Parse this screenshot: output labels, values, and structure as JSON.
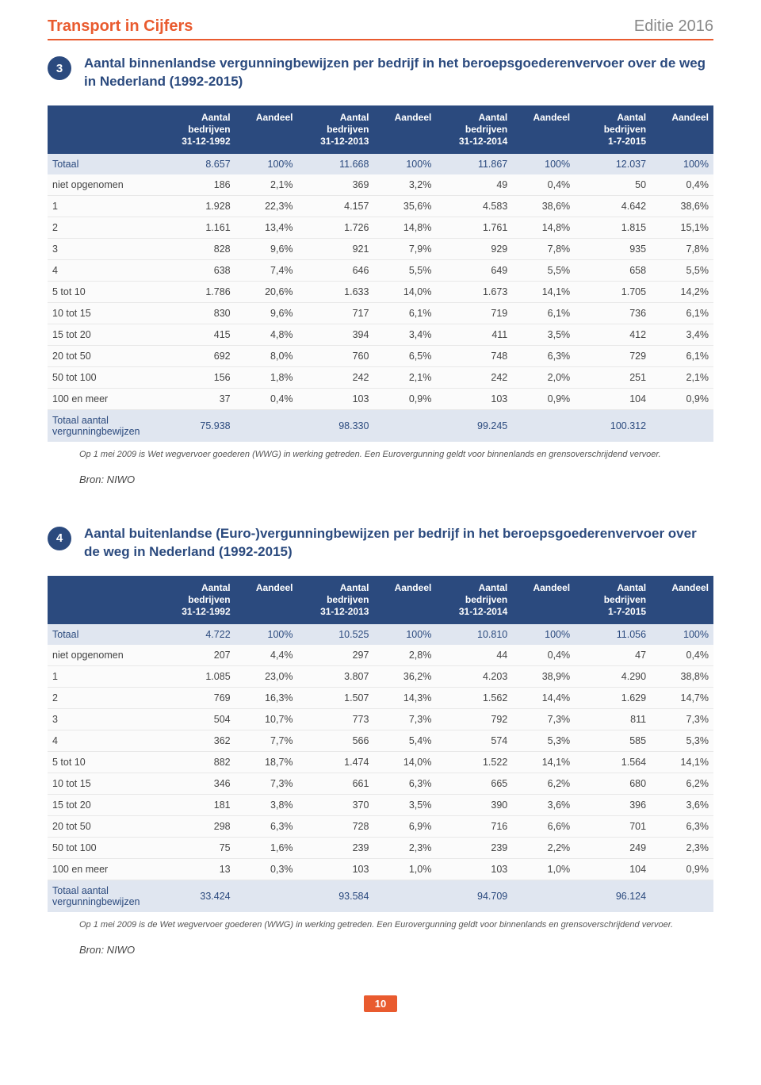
{
  "header": {
    "doc_title": "Transport in Cijfers",
    "edition": "Editie 2016"
  },
  "colors": {
    "accent": "#e95b2f",
    "brand_blue": "#2b4a7e",
    "blue_tint": "#e0e6f0",
    "row_border": "#e8e8e8",
    "background": "#ffffff"
  },
  "columns": [
    "",
    "Aantal bedrijven 31-12-1992",
    "Aandeel",
    "Aantal bedrijven 31-12-2013",
    "Aandeel",
    "Aantal bedrijven 31-12-2014",
    "Aandeel",
    "Aantal bedrijven 1-7-2015",
    "Aandeel"
  ],
  "sections": [
    {
      "num": "3",
      "title": "Aantal binnenlandse vergunningbewijzen per bedrijf in het beroepsgoederenvervoer over de weg in Nederland (1992-2015)",
      "totaal": [
        "Totaal",
        "8.657",
        "100%",
        "11.668",
        "100%",
        "11.867",
        "100%",
        "12.037",
        "100%"
      ],
      "rows": [
        [
          "niet opgenomen",
          "186",
          "2,1%",
          "369",
          "3,2%",
          "49",
          "0,4%",
          "50",
          "0,4%"
        ],
        [
          "1",
          "1.928",
          "22,3%",
          "4.157",
          "35,6%",
          "4.583",
          "38,6%",
          "4.642",
          "38,6%"
        ],
        [
          "2",
          "1.161",
          "13,4%",
          "1.726",
          "14,8%",
          "1.761",
          "14,8%",
          "1.815",
          "15,1%"
        ],
        [
          "3",
          "828",
          "9,6%",
          "921",
          "7,9%",
          "929",
          "7,8%",
          "935",
          "7,8%"
        ],
        [
          "4",
          "638",
          "7,4%",
          "646",
          "5,5%",
          "649",
          "5,5%",
          "658",
          "5,5%"
        ],
        [
          "5 tot 10",
          "1.786",
          "20,6%",
          "1.633",
          "14,0%",
          "1.673",
          "14,1%",
          "1.705",
          "14,2%"
        ],
        [
          "10 tot 15",
          "830",
          "9,6%",
          "717",
          "6,1%",
          "719",
          "6,1%",
          "736",
          "6,1%"
        ],
        [
          "15 tot 20",
          "415",
          "4,8%",
          "394",
          "3,4%",
          "411",
          "3,5%",
          "412",
          "3,4%"
        ],
        [
          "20 tot 50",
          "692",
          "8,0%",
          "760",
          "6,5%",
          "748",
          "6,3%",
          "729",
          "6,1%"
        ],
        [
          "50 tot 100",
          "156",
          "1,8%",
          "242",
          "2,1%",
          "242",
          "2,0%",
          "251",
          "2,1%"
        ],
        [
          "100 en meer",
          "37",
          "0,4%",
          "103",
          "0,9%",
          "103",
          "0,9%",
          "104",
          "0,9%"
        ]
      ],
      "footer_total": [
        "Totaal aantal vergunningbewijzen",
        "75.938",
        "",
        "98.330",
        "",
        "99.245",
        "",
        "100.312",
        ""
      ],
      "footnote": "Op 1 mei 2009 is Wet wegvervoer goederen (WWG) in werking getreden. Een Eurovergunning geldt voor binnenlands en grensoverschrijdend vervoer.",
      "bron": "Bron: NIWO"
    },
    {
      "num": "4",
      "title": "Aantal buitenlandse (Euro-)vergunningbewijzen per bedrijf in het beroepsgoederenvervoer over de weg in Nederland (1992-2015)",
      "totaal": [
        "Totaal",
        "4.722",
        "100%",
        "10.525",
        "100%",
        "10.810",
        "100%",
        "11.056",
        "100%"
      ],
      "rows": [
        [
          "niet opgenomen",
          "207",
          "4,4%",
          "297",
          "2,8%",
          "44",
          "0,4%",
          "47",
          "0,4%"
        ],
        [
          "1",
          "1.085",
          "23,0%",
          "3.807",
          "36,2%",
          "4.203",
          "38,9%",
          "4.290",
          "38,8%"
        ],
        [
          "2",
          "769",
          "16,3%",
          "1.507",
          "14,3%",
          "1.562",
          "14,4%",
          "1.629",
          "14,7%"
        ],
        [
          "3",
          "504",
          "10,7%",
          "773",
          "7,3%",
          "792",
          "7,3%",
          "811",
          "7,3%"
        ],
        [
          "4",
          "362",
          "7,7%",
          "566",
          "5,4%",
          "574",
          "5,3%",
          "585",
          "5,3%"
        ],
        [
          "5 tot 10",
          "882",
          "18,7%",
          "1.474",
          "14,0%",
          "1.522",
          "14,1%",
          "1.564",
          "14,1%"
        ],
        [
          "10 tot 15",
          "346",
          "7,3%",
          "661",
          "6,3%",
          "665",
          "6,2%",
          "680",
          "6,2%"
        ],
        [
          "15 tot 20",
          "181",
          "3,8%",
          "370",
          "3,5%",
          "390",
          "3,6%",
          "396",
          "3,6%"
        ],
        [
          "20 tot 50",
          "298",
          "6,3%",
          "728",
          "6,9%",
          "716",
          "6,6%",
          "701",
          "6,3%"
        ],
        [
          "50 tot 100",
          "75",
          "1,6%",
          "239",
          "2,3%",
          "239",
          "2,2%",
          "249",
          "2,3%"
        ],
        [
          "100 en meer",
          "13",
          "0,3%",
          "103",
          "1,0%",
          "103",
          "1,0%",
          "104",
          "0,9%"
        ]
      ],
      "footer_total": [
        "Totaal aantal vergunningbewijzen",
        "33.424",
        "",
        "93.584",
        "",
        "94.709",
        "",
        "96.124",
        ""
      ],
      "footnote": "Op 1 mei 2009 is de Wet wegvervoer goederen (WWG) in werking getreden. Een Eurovergunning geldt voor binnenlands en grensoverschrijdend vervoer.",
      "bron": "Bron: NIWO"
    }
  ],
  "page_number": "10"
}
